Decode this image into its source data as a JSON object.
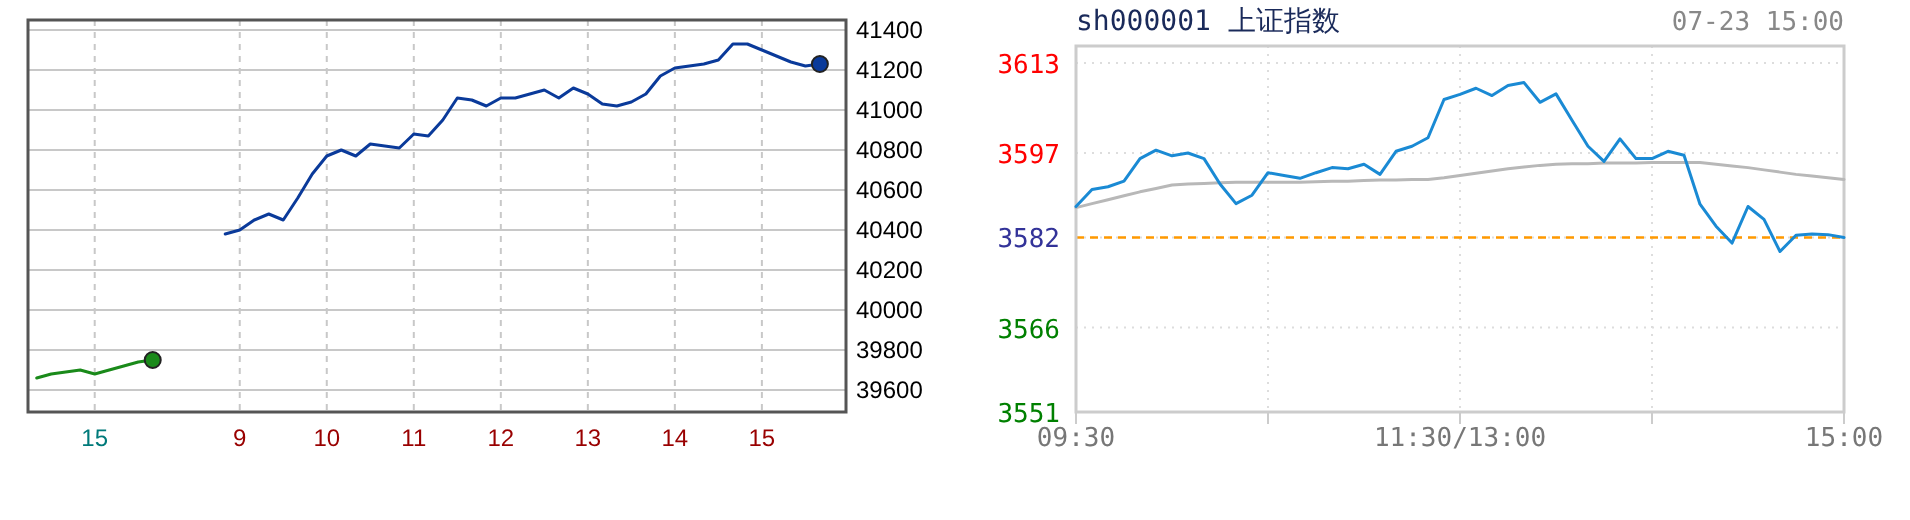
{
  "chart_data": [
    {
      "type": "line",
      "categories": [
        null,
        null,
        null,
        null,
        "15",
        null,
        null,
        null,
        null,
        null,
        null,
        null,
        null,
        null,
        "9",
        null,
        null,
        null,
        null,
        null,
        "10",
        null,
        null,
        null,
        null,
        null,
        "11",
        null,
        null,
        null,
        null,
        null,
        "12",
        null,
        null,
        null,
        null,
        null,
        "13",
        null,
        null,
        null,
        null,
        null,
        "14",
        null,
        null,
        null,
        null,
        null,
        "15",
        null,
        null,
        null,
        null
      ],
      "ylim": [
        39490,
        41450
      ],
      "yticks": [
        39600,
        39800,
        40000,
        40200,
        40400,
        40600,
        40800,
        41000,
        41200,
        41400
      ],
      "grid": true,
      "series": [
        {
          "color": "#1a8a1a",
          "values": [
            39660,
            39680,
            39690,
            39700,
            39680,
            39700,
            39720,
            39740,
            39750,
            null,
            null,
            null,
            null,
            null,
            null,
            null,
            null,
            null,
            null,
            null,
            null,
            null,
            null,
            null,
            null,
            null,
            null,
            null,
            null,
            null,
            null,
            null,
            null,
            null,
            null,
            null,
            null,
            null,
            null,
            null,
            null,
            null,
            null,
            null,
            null,
            null,
            null,
            null,
            null,
            null,
            null,
            null,
            null,
            null,
            null
          ]
        },
        {
          "type": "scatter",
          "marker": "circle",
          "color": "#1a8a1a",
          "values": [
            null,
            null,
            null,
            null,
            null,
            null,
            null,
            null,
            39750,
            null,
            null,
            null,
            null,
            null,
            null,
            null,
            null,
            null,
            null,
            null,
            null,
            null,
            null,
            null,
            null,
            null,
            null,
            null,
            null,
            null,
            null,
            null,
            null,
            null,
            null,
            null,
            null,
            null,
            null,
            null,
            null,
            null,
            null,
            null,
            null,
            null,
            null,
            null,
            null,
            null,
            null,
            null,
            null,
            null,
            null
          ]
        },
        {
          "color": "#0a3a9a",
          "values": [
            null,
            null,
            null,
            null,
            null,
            null,
            null,
            null,
            null,
            null,
            null,
            null,
            null,
            40380,
            40400,
            40450,
            40480,
            40450,
            40560,
            40680,
            40770,
            40800,
            40770,
            40830,
            40820,
            40810,
            40880,
            40870,
            40950,
            41060,
            41050,
            41020,
            41060,
            41060,
            41080,
            41100,
            41060,
            41110,
            41080,
            41030,
            41020,
            41040,
            41080,
            41170,
            41210,
            41220,
            41230,
            41250,
            41330,
            41330,
            41300,
            41270,
            41240,
            41220,
            41230
          ]
        },
        {
          "type": "scatter",
          "marker": "circle",
          "color": "#0a3a9a",
          "values": [
            null,
            null,
            null,
            null,
            null,
            null,
            null,
            null,
            null,
            null,
            null,
            null,
            null,
            null,
            null,
            null,
            null,
            null,
            null,
            null,
            null,
            null,
            null,
            null,
            null,
            null,
            null,
            null,
            null,
            null,
            null,
            null,
            null,
            null,
            null,
            null,
            null,
            null,
            null,
            null,
            null,
            null,
            null,
            null,
            null,
            null,
            null,
            null,
            null,
            null,
            null,
            null,
            null,
            null,
            41230
          ]
        }
      ]
    },
    {
      "type": "line",
      "title": "sh000001  上证指数",
      "subtitle": "07-23 15:00",
      "categories": [
        "09:30",
        null,
        null,
        null,
        null,
        null,
        null,
        null,
        null,
        null,
        null,
        null,
        null,
        null,
        null,
        null,
        null,
        null,
        null,
        null,
        null,
        null,
        null,
        null,
        "11:30/13:00",
        null,
        null,
        null,
        null,
        null,
        null,
        null,
        null,
        null,
        null,
        null,
        null,
        null,
        null,
        null,
        null,
        null,
        null,
        null,
        null,
        null,
        null,
        null,
        "15:00"
      ],
      "ylim": [
        3551,
        3616
      ],
      "yticks": [
        3551,
        3566,
        3582,
        3597,
        3613
      ],
      "grid": true,
      "ref_lines": [
        {
          "axis": "y",
          "value": 3582,
          "color": "#ff9900",
          "line_style": "dashed"
        }
      ],
      "series": [
        {
          "color": "#b8b8b8",
          "values": [
            3587.3,
            3588.0,
            3588.7,
            3589.4,
            3590.1,
            3590.7,
            3591.3,
            3591.5,
            3591.6,
            3591.7,
            3591.8,
            3591.8,
            3591.8,
            3591.8,
            3591.8,
            3591.9,
            3592.0,
            3592.0,
            3592.1,
            3592.2,
            3592.2,
            3592.3,
            3592.3,
            3592.6,
            3593.0,
            3593.4,
            3593.8,
            3594.2,
            3594.5,
            3594.8,
            3595.0,
            3595.1,
            3595.1,
            3595.2,
            3595.2,
            3595.2,
            3595.3,
            3595.3,
            3595.3,
            3595.3,
            3595.0,
            3594.7,
            3594.4,
            3594.0,
            3593.6,
            3593.2,
            3592.9,
            3592.6,
            3592.3
          ]
        },
        {
          "color": "#1a8ad4",
          "values": [
            3587.5,
            3590.5,
            3591.0,
            3592.0,
            3596.0,
            3597.5,
            3596.5,
            3597.0,
            3596.0,
            3591.5,
            3588.0,
            3589.5,
            3593.5,
            3593.0,
            3592.5,
            3593.5,
            3594.4,
            3594.2,
            3595.0,
            3593.2,
            3597.3,
            3598.2,
            3599.7,
            3606.5,
            3607.4,
            3608.5,
            3607.2,
            3609.0,
            3609.5,
            3606.0,
            3607.5,
            3602.8,
            3598.2,
            3595.5,
            3599.5,
            3596.0,
            3596.0,
            3597.3,
            3596.6,
            3587.9,
            3584.0,
            3581.0,
            3587.5,
            3585.2,
            3579.5,
            3582.4,
            3582.6,
            3582.5,
            3582.0
          ]
        }
      ]
    }
  ]
}
